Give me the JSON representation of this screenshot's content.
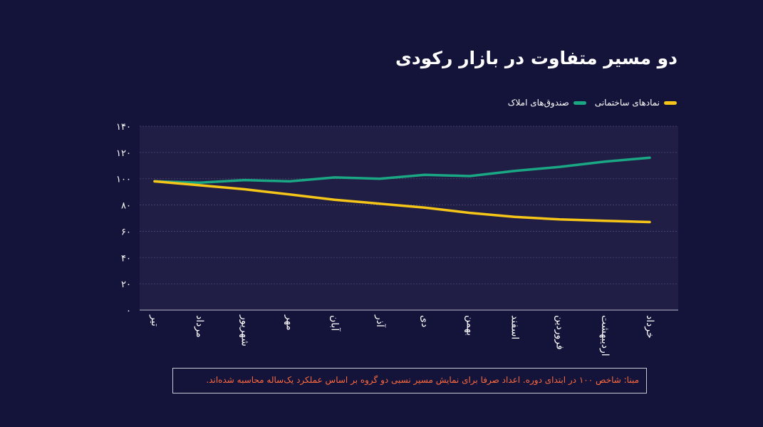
{
  "title": "دو مسیر متفاوت در بازار رکودی",
  "note": "مبنا: شاخص ۱۰۰ در ابتدای دوره. اعداد صرفا برای نمایش مسیر نسبی دو گروه بر اساس عملکرد یک‌ساله محاسبه شده‌اند.",
  "colors": {
    "background": "#14133a",
    "plot_background": "#201e44",
    "construction": "#f5c518",
    "realestate": "#1aa784",
    "note_text": "#ff6a3d"
  },
  "chart_data": {
    "type": "line",
    "categories": [
      "تیر",
      "مرداد",
      "شهریور",
      "مهر",
      "آبان",
      "آذر",
      "دی",
      "بهمن",
      "اسفند",
      "فروردین",
      "اردیبهشت",
      "خرداد"
    ],
    "series": [
      {
        "name": "نمادهای ساختمانی",
        "color": "#f5c518",
        "values": [
          98,
          95,
          92,
          88,
          84,
          81,
          78,
          74,
          71,
          69,
          68,
          67
        ]
      },
      {
        "name": "صندوق‌های املاک",
        "color": "#1aa784",
        "values": [
          98,
          97,
          99,
          98,
          101,
          100,
          103,
          102,
          106,
          109,
          113,
          116
        ]
      }
    ],
    "ylim": [
      0,
      140
    ],
    "yticks": [
      0,
      20,
      40,
      60,
      80,
      100,
      120,
      140
    ],
    "ytick_labels": [
      "۰",
      "۲۰",
      "۴۰",
      "۶۰",
      "۸۰",
      "۱۰۰",
      "۱۲۰",
      "۱۴۰"
    ],
    "grid": true,
    "legend": "top-right"
  }
}
